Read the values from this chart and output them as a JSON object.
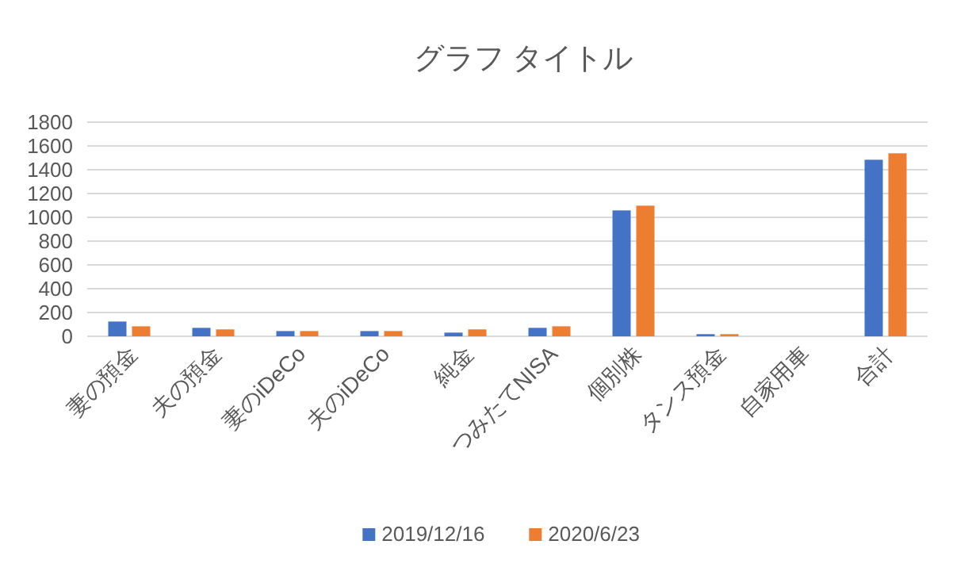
{
  "chart_data": {
    "type": "bar",
    "title": "グラフ タイトル",
    "categories": [
      "妻の預金",
      "夫の預金",
      "妻のiDeCo",
      "夫のiDeCo",
      "純金",
      "つみたてNISA",
      "個別株",
      "タンス預金",
      "自家用車",
      "合計"
    ],
    "series": [
      {
        "name": "2019/12/16",
        "color": "#4472c4",
        "values": [
          124,
          71,
          44,
          44,
          31,
          71,
          1058,
          18,
          0,
          1484
        ]
      },
      {
        "name": "2020/6/23",
        "color": "#ed7d31",
        "values": [
          84,
          58,
          44,
          44,
          58,
          84,
          1098,
          18,
          0,
          1538
        ]
      }
    ],
    "ylim": [
      0,
      1800
    ],
    "yticks": [
      0,
      200,
      400,
      600,
      800,
      1000,
      1200,
      1400,
      1600,
      1800
    ],
    "grid": "y",
    "legend": "bottom"
  }
}
